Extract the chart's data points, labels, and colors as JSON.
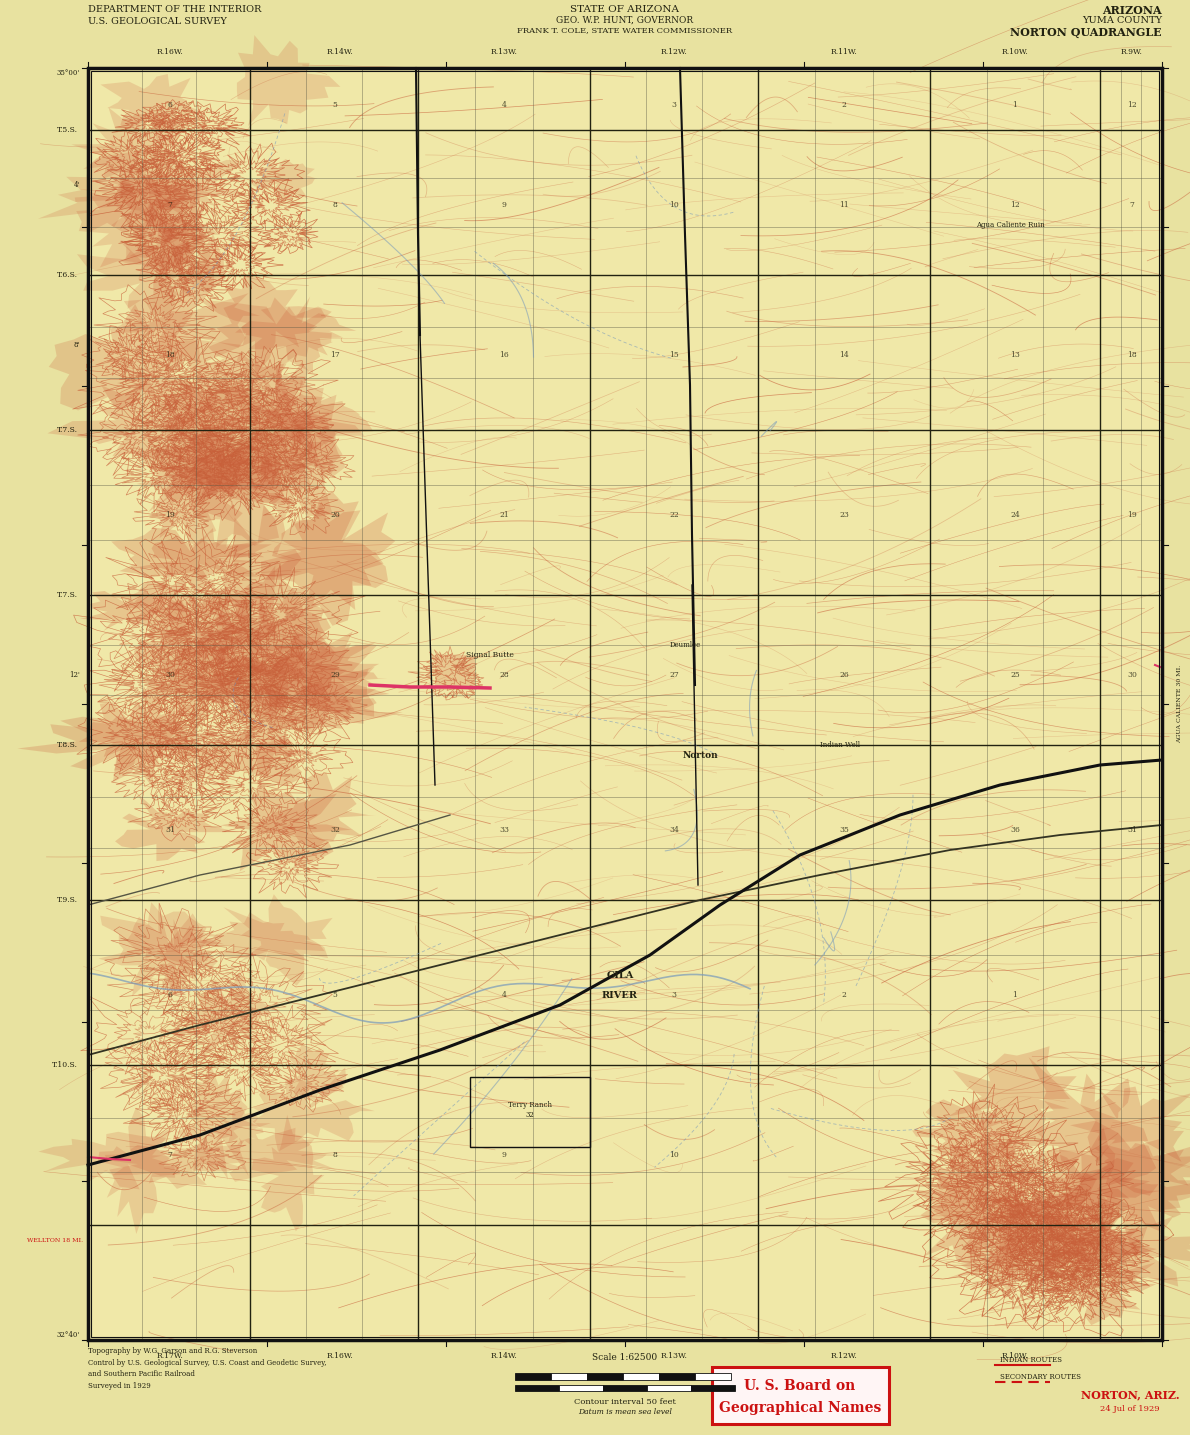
{
  "title_left_line1": "DEPARTMENT OF THE INTERIOR",
  "title_left_line2": "U.S. GEOLOGICAL SURVEY",
  "title_center_line1": "STATE OF ARIZONA",
  "title_center_line2": "GEO. W.P. HUNT, GOVERNOR",
  "title_center_line3": "FRANK T. COLE, STATE WATER COMMISSIONER",
  "title_right_line1": "ARIZONA",
  "title_right_line2": "YUMA COUNTY",
  "title_right_line3": "NORTON QUADRANGLE",
  "bottom_left_notes": "Topography by W.G. Garson and R.G. Steverson\nControl by U.S. Geological Survey, U.S. Coast and Geodetic Survey,\nand Southern Pacific Railroad\nSurveyed in 1929",
  "bottom_center_scale": "Scale 1:62500",
  "contour_interval": "Contour interval 50 feet",
  "datum": "Datum is mean sea level",
  "bottom_right_name": "NORTON, ARIZ.",
  "bottom_right_date": "24 Jul of 1929",
  "usgs_box_line1": "U. S. Board on",
  "usgs_box_line2": "Geographical Names",
  "margin_color": "#e8e2a0",
  "map_bg_color": "#f0e8a8",
  "border_color": "#111111",
  "topo_line_color": "#c8603a",
  "topo_fill_color": "#d4723a",
  "water_color": "#7799bb",
  "grid_color": "#555544",
  "text_color": "#222211",
  "red_text_color": "#cc1111",
  "pink_road_color": "#dd3366"
}
